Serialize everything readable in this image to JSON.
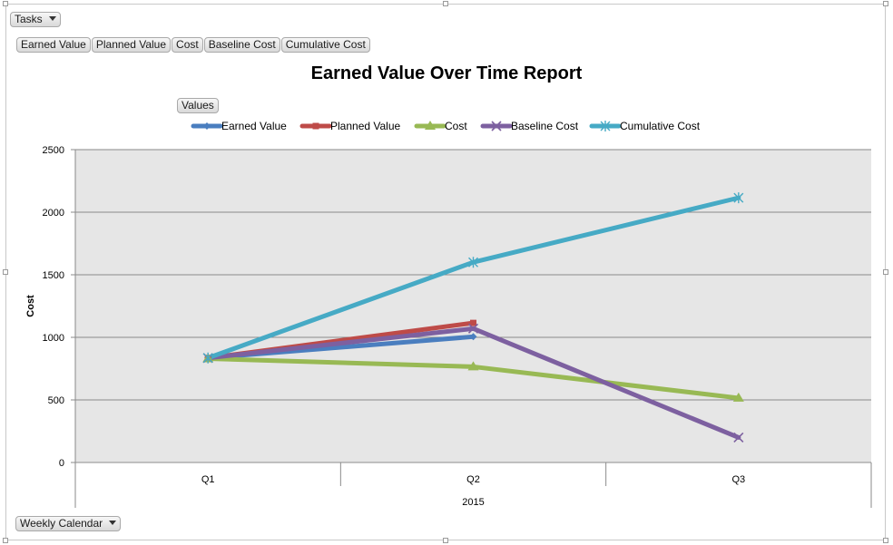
{
  "filters": {
    "report_filter": "Tasks",
    "value_fields": [
      "Earned Value",
      "Planned Value",
      "Cost",
      "Baseline Cost",
      "Cumulative Cost"
    ],
    "values_button": "Values",
    "axis_field": "Weekly Calendar"
  },
  "chart_data": {
    "type": "line",
    "title": "Earned Value Over Time Report",
    "categories": [
      "Q1",
      "Q2",
      "Q3"
    ],
    "category_group": "2015",
    "ylabel": "Cost",
    "ylim": [
      0,
      2500
    ],
    "yticks": [
      0,
      500,
      1000,
      1500,
      2000,
      2500
    ],
    "grid": true,
    "legend_position": "top",
    "series": [
      {
        "name": "Earned Value",
        "color": "#4a7ebf",
        "marker": "diamond",
        "values": [
          835,
          1005,
          null
        ]
      },
      {
        "name": "Planned Value",
        "color": "#be4b48",
        "marker": "square",
        "values": [
          835,
          1115,
          null
        ]
      },
      {
        "name": "Cost",
        "color": "#98b954",
        "marker": "triangle",
        "values": [
          830,
          765,
          515
        ]
      },
      {
        "name": "Baseline Cost",
        "color": "#7d60a0",
        "marker": "x",
        "values": [
          835,
          1070,
          200
        ]
      },
      {
        "name": "Cumulative Cost",
        "color": "#46aac5",
        "marker": "star",
        "values": [
          835,
          1600,
          2115
        ]
      }
    ]
  }
}
